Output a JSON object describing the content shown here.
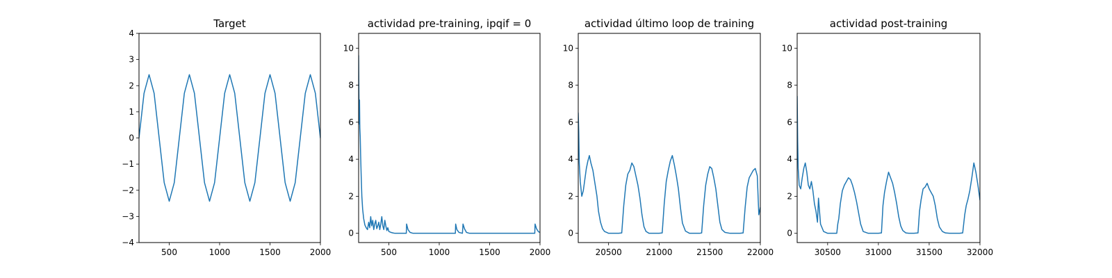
{
  "colors": {
    "series": "#1f77b4",
    "axes": "#000000",
    "background": "#ffffff"
  },
  "chart_data": [
    {
      "type": "line",
      "title": "Target",
      "xlabel": "",
      "ylabel": "",
      "xlim": [
        200,
        2000
      ],
      "ylim": [
        -4,
        4
      ],
      "xticks": [
        500,
        1000,
        1500,
        2000
      ],
      "yticks": [
        -4,
        -3,
        -2,
        -1,
        0,
        1,
        2,
        3,
        4
      ],
      "grid": false,
      "series": [
        {
          "x": [
            200,
            250,
            300,
            350,
            400,
            450,
            500,
            550,
            600,
            650,
            700,
            750,
            800,
            850,
            900,
            950,
            1000,
            1050,
            1100,
            1150,
            1200,
            1250,
            1300,
            1350,
            1400,
            1450,
            1500,
            1550,
            1600,
            1650,
            1700,
            1750,
            1800,
            1850,
            1900,
            1950,
            2000
          ],
          "y": [
            0,
            1.71,
            2.42,
            1.71,
            0,
            -1.71,
            -2.42,
            -1.71,
            0,
            1.71,
            2.42,
            1.71,
            0,
            -1.71,
            -2.42,
            -1.71,
            0,
            1.71,
            2.42,
            1.71,
            0,
            -1.71,
            -2.42,
            -1.71,
            0,
            1.71,
            2.42,
            1.71,
            0,
            -1.71,
            -2.42,
            -1.71,
            0,
            1.71,
            2.42,
            1.71,
            0
          ]
        }
      ]
    },
    {
      "type": "line",
      "title": "actividad pre-training, ipqif = 0",
      "xlabel": "",
      "ylabel": "",
      "xlim": [
        200,
        2000
      ],
      "ylim": [
        -0.5,
        10.8
      ],
      "xticks": [
        500,
        1000,
        1500,
        2000
      ],
      "yticks": [
        0,
        2,
        4,
        6,
        8,
        10
      ],
      "grid": false,
      "series": [
        {
          "x": [
            200,
            203,
            206,
            209,
            212,
            216,
            220,
            226,
            232,
            240,
            250,
            262,
            275,
            288,
            300,
            310,
            320,
            330,
            340,
            350,
            360,
            370,
            380,
            390,
            400,
            410,
            420,
            430,
            440,
            450,
            460,
            470,
            480,
            490,
            500,
            520,
            540,
            560,
            580,
            600,
            640,
            673,
            676,
            690,
            710,
            740,
            800,
            900,
            1000,
            1100,
            1160,
            1163,
            1175,
            1195,
            1230,
            1236,
            1250,
            1270,
            1300,
            1400,
            1500,
            1600,
            1700,
            1800,
            1900,
            1948,
            1951,
            1965,
            1985,
            2000
          ],
          "y": [
            9.6,
            7.5,
            5.9,
            7.2,
            5.7,
            5.2,
            4.2,
            3.0,
            2.0,
            1.3,
            0.8,
            0.45,
            0.3,
            0.2,
            0.6,
            0.3,
            0.9,
            0.4,
            0.7,
            0.2,
            0.5,
            0.7,
            0.25,
            0.4,
            0.6,
            0.2,
            0.5,
            0.9,
            0.4,
            0.2,
            0.7,
            0.4,
            0.15,
            0.3,
            0.1,
            0.05,
            0.02,
            0.0,
            0.0,
            0.0,
            0.0,
            0.0,
            0.5,
            0.2,
            0.05,
            0.0,
            0.0,
            0.0,
            0.0,
            0.0,
            0.0,
            0.5,
            0.2,
            0.05,
            0.0,
            0.5,
            0.25,
            0.05,
            0.0,
            0.0,
            0.0,
            0.0,
            0.0,
            0.0,
            0.0,
            0.0,
            0.5,
            0.25,
            0.08,
            0.05
          ]
        }
      ]
    },
    {
      "type": "line",
      "title": "actividad último loop de training",
      "xlabel": "",
      "ylabel": "",
      "xlim": [
        20200,
        22000
      ],
      "ylim": [
        -0.5,
        10.8
      ],
      "xticks": [
        20500,
        21000,
        21500,
        22000
      ],
      "yticks": [
        0,
        2,
        4,
        6,
        8,
        10
      ],
      "grid": false,
      "series": [
        {
          "x": [
            20200,
            20205,
            20210,
            20220,
            20235,
            20250,
            20265,
            20280,
            20295,
            20310,
            20325,
            20345,
            20365,
            20385,
            20400,
            20420,
            20440,
            20460,
            20480,
            20500,
            20550,
            20600,
            20630,
            20650,
            20670,
            20690,
            20710,
            20730,
            20750,
            20770,
            20790,
            20810,
            20830,
            20850,
            20870,
            20900,
            20950,
            21000,
            21030,
            21050,
            21070,
            21090,
            21110,
            21130,
            21150,
            21170,
            21190,
            21210,
            21230,
            21260,
            21300,
            21350,
            21400,
            21420,
            21440,
            21460,
            21480,
            21500,
            21520,
            21540,
            21560,
            21580,
            21600,
            21620,
            21650,
            21700,
            21750,
            21800,
            21830,
            21850,
            21870,
            21890,
            21910,
            21930,
            21950,
            21970,
            21985,
            22000
          ],
          "y": [
            6.5,
            5.5,
            3.8,
            2.8,
            2.0,
            2.3,
            2.9,
            3.5,
            3.9,
            4.2,
            3.8,
            3.4,
            2.7,
            2.0,
            1.2,
            0.6,
            0.25,
            0.1,
            0.05,
            0.0,
            0.0,
            0.0,
            0.02,
            1.5,
            2.6,
            3.2,
            3.4,
            3.8,
            3.6,
            3.1,
            2.6,
            1.9,
            1.0,
            0.35,
            0.1,
            0.0,
            0.0,
            0.0,
            0.02,
            1.6,
            2.8,
            3.4,
            3.9,
            4.2,
            3.7,
            3.1,
            2.4,
            1.4,
            0.55,
            0.12,
            0.0,
            0.0,
            0.0,
            0.02,
            1.5,
            2.6,
            3.2,
            3.6,
            3.5,
            3.0,
            2.4,
            1.5,
            0.6,
            0.2,
            0.05,
            0.0,
            0.0,
            0.0,
            0.02,
            1.4,
            2.5,
            3.0,
            3.2,
            3.4,
            3.5,
            3.1,
            1.0,
            1.4
          ]
        }
      ]
    },
    {
      "type": "line",
      "title": "actividad post-training",
      "xlabel": "",
      "ylabel": "",
      "xlim": [
        30200,
        32000
      ],
      "ylim": [
        -0.5,
        10.8
      ],
      "xticks": [
        30500,
        31000,
        31500,
        32000
      ],
      "yticks": [
        0,
        2,
        4,
        6,
        8,
        10
      ],
      "grid": false,
      "series": [
        {
          "x": [
            30200,
            30205,
            30210,
            30220,
            30235,
            30250,
            30265,
            30280,
            30295,
            30310,
            30325,
            30340,
            30355,
            30370,
            30385,
            30400,
            30410,
            30430,
            30460,
            30500,
            30550,
            30590,
            30600,
            30610,
            30625,
            30645,
            30665,
            30685,
            30705,
            30725,
            30745,
            30765,
            30785,
            30805,
            30825,
            30850,
            30900,
            30950,
            31000,
            31030,
            31045,
            31060,
            31080,
            31100,
            31120,
            31140,
            31160,
            31180,
            31200,
            31220,
            31240,
            31270,
            31300,
            31350,
            31390,
            31405,
            31420,
            31440,
            31460,
            31480,
            31500,
            31520,
            31540,
            31560,
            31580,
            31600,
            31630,
            31660,
            31700,
            31750,
            31800,
            31830,
            31850,
            31865,
            31880,
            31900,
            31920,
            31940,
            31960,
            31980,
            31990,
            32000
          ],
          "y": [
            7.4,
            5.0,
            3.5,
            2.6,
            2.4,
            3.0,
            3.5,
            3.8,
            3.3,
            2.6,
            2.4,
            2.8,
            2.3,
            1.6,
            1.2,
            0.6,
            1.9,
            0.5,
            0.1,
            0.0,
            0.0,
            0.0,
            0.5,
            0.8,
            1.6,
            2.3,
            2.6,
            2.8,
            3.0,
            2.9,
            2.6,
            2.2,
            1.7,
            1.1,
            0.5,
            0.1,
            0.0,
            0.0,
            0.0,
            0.02,
            1.5,
            2.2,
            2.8,
            3.3,
            3.0,
            2.7,
            2.2,
            1.6,
            0.9,
            0.4,
            0.15,
            0.02,
            0.0,
            0.0,
            0.02,
            1.2,
            1.8,
            2.4,
            2.5,
            2.7,
            2.4,
            2.2,
            2.0,
            1.5,
            0.8,
            0.35,
            0.1,
            0.02,
            0.0,
            0.0,
            0.0,
            0.02,
            1.0,
            1.5,
            1.8,
            2.3,
            3.0,
            3.8,
            3.3,
            2.6,
            2.2,
            1.8
          ]
        }
      ]
    }
  ]
}
